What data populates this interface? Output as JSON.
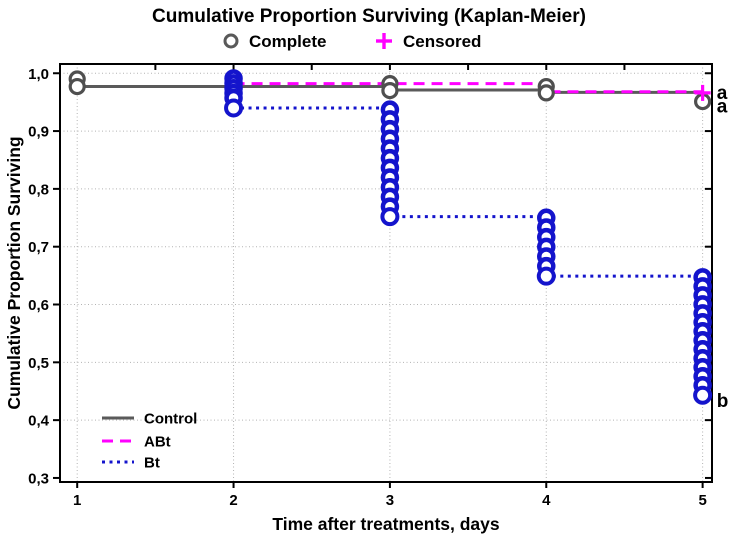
{
  "chart_data": {
    "type": "line",
    "title": "Cumulative Proportion Surviving (Kaplan-Meier)",
    "xlabel": "Time after treatments, days",
    "ylabel": "Cumulative Proportion Surviving",
    "xlim": [
      0.89,
      5.06
    ],
    "ylim": [
      0.293,
      1.016
    ],
    "xticks": [
      1,
      2,
      3,
      4,
      5
    ],
    "xtick_labels": [
      "1",
      "2",
      "3",
      "4",
      "5"
    ],
    "yticks": [
      1.0,
      0.9,
      0.8,
      0.7,
      0.6,
      0.5,
      0.4,
      0.3
    ],
    "ytick_labels": [
      "1,0",
      "0,9",
      "0,8",
      "0,7",
      "0,6",
      "0,5",
      "0,4",
      "0,3"
    ],
    "ygrid": [
      1.0,
      0.9,
      0.8,
      0.7,
      0.6,
      0.5,
      0.4
    ],
    "xgrid": [
      1,
      2,
      3,
      4,
      5
    ],
    "grid": true,
    "grid_color": "#b3b3b3",
    "legend_position": "bottom-left-inside",
    "top_legend": {
      "complete_label": "Complete",
      "complete_marker": "open-circle",
      "complete_color": "#595959",
      "censored_label": "Censored",
      "censored_marker": "plus",
      "censored_color": "#ff00ff"
    },
    "series": [
      {
        "name": "Control",
        "color": "#5a5a5a",
        "line_style": "solid",
        "steps": [
          [
            1,
            0.977
          ],
          [
            3,
            0.971
          ],
          [
            4,
            0.967
          ],
          [
            5,
            0.967
          ]
        ],
        "marker": "open-circle",
        "marker_color": "#4f4f4f",
        "marker_groups": [
          {
            "x": 1,
            "ys": [
              0.99,
              0.977
            ]
          },
          {
            "x": 3,
            "ys": [
              0.982,
              0.97
            ]
          },
          {
            "x": 4,
            "ys": [
              0.977,
              0.966
            ]
          },
          {
            "x": 5,
            "ys": [
              0.951
            ]
          }
        ]
      },
      {
        "name": "ABt",
        "color": "#ff00ff",
        "line_style": "dashed",
        "steps": [
          [
            2,
            0.982
          ],
          [
            4,
            0.968
          ],
          [
            5,
            0.968
          ]
        ],
        "censored_points": [
          [
            5,
            0.966
          ]
        ]
      },
      {
        "name": "Bt",
        "color": "#1414cc",
        "line_style": "dotted",
        "steps": [
          [
            2,
            0.94
          ],
          [
            3,
            0.752
          ],
          [
            4,
            0.649
          ],
          [
            5,
            0.649
          ]
        ],
        "drop_clusters": [
          {
            "x": 2,
            "top": 0.991,
            "bottom": 0.94,
            "count": 5
          },
          {
            "x": 3,
            "top": 0.937,
            "bottom": 0.752,
            "count": 11
          },
          {
            "x": 4,
            "top": 0.75,
            "bottom": 0.649,
            "count": 6
          },
          {
            "x": 5,
            "top": 0.647,
            "bottom": 0.443,
            "count": 13
          }
        ]
      }
    ],
    "annotations": [
      {
        "text": "a",
        "x": 5.09,
        "y": 0.968
      },
      {
        "text": "a",
        "x": 5.09,
        "y": 0.944
      },
      {
        "text": "b",
        "x": 5.09,
        "y": 0.435
      }
    ]
  }
}
